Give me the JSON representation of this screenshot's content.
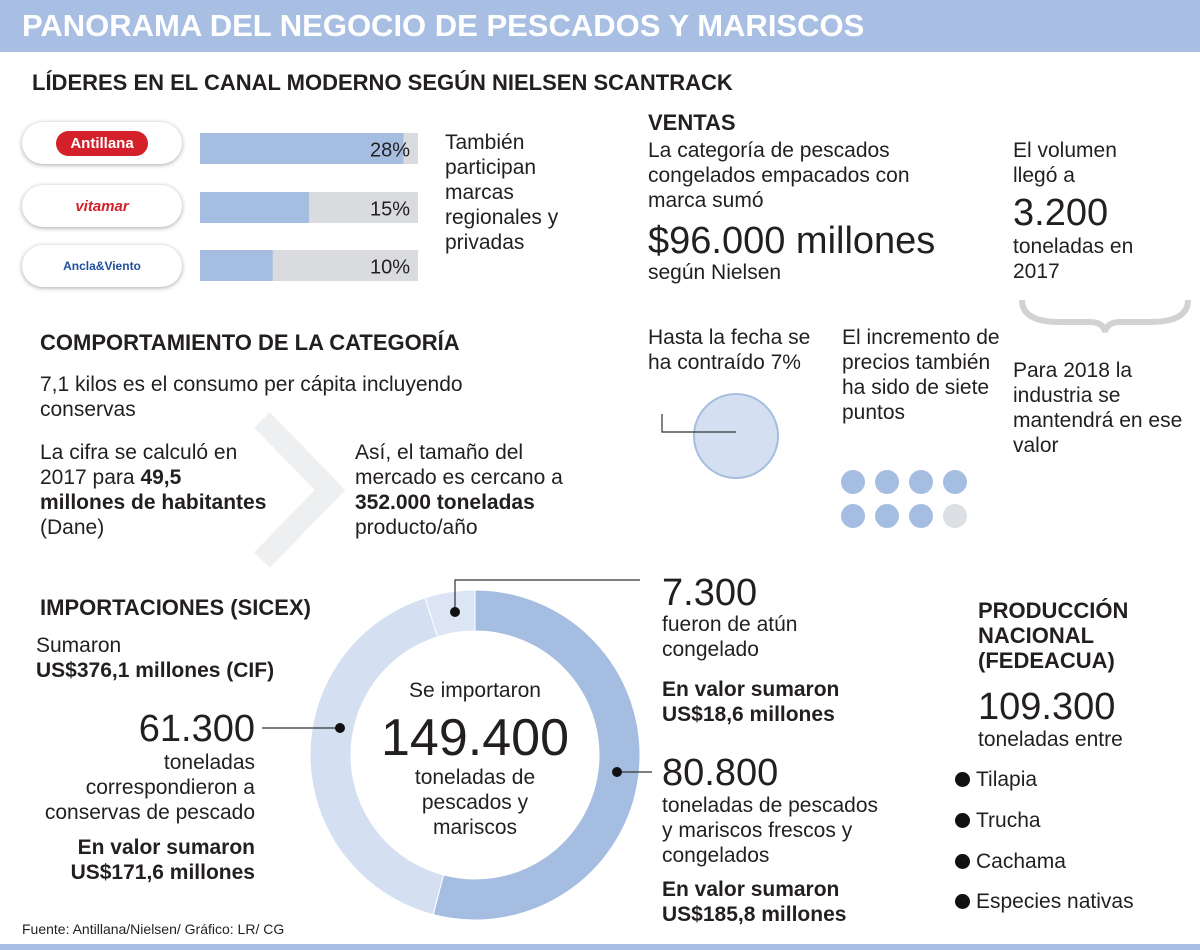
{
  "header": {
    "title": "PANORAMA DEL NEGOCIO DE PESCADOS Y MARISCOS"
  },
  "leaders": {
    "title": "LÍDERES EN EL CANAL MODERNO SEGÚN NIELSEN SCANTRACK",
    "note": "También participan marcas regionales y privadas"
  },
  "chart_data": [
    {
      "type": "bar",
      "categories": [
        "Antillana",
        "vitamar",
        "Ancla&Viento"
      ],
      "values": [
        28,
        15,
        10
      ],
      "value_labels": [
        "28%",
        "15%",
        "10%"
      ],
      "xlim": [
        0,
        30
      ],
      "color": "#a6bde2",
      "track_color": "#d9dbde"
    },
    {
      "type": "donut",
      "values": [
        80800,
        61300,
        7300
      ],
      "value_labels": [
        "80.800",
        "61.300",
        "7.300"
      ],
      "colors": [
        "#a6bde2",
        "#d4e0f1",
        "#dbe5f4"
      ]
    }
  ],
  "sales": {
    "title": "VENTAS",
    "text": "La categoría de pescados congelados empacados con marca sumó",
    "amount": "$96.000 millones",
    "source": "según Nielsen"
  },
  "volume": {
    "pre": "El volumen llegó a",
    "value": "3.200",
    "post": "toneladas en 2017",
    "forecast": "Para 2018 la industria se mantendrá en ese valor"
  },
  "contraction": {
    "text": "Hasta la fecha se ha contraído 7%"
  },
  "prices": {
    "text": "El incremento de precios también ha sido de siete puntos"
  },
  "category": {
    "title": "COMPORTAMIENTO DE LA CATEGORÍA",
    "per_capita": "7,1 kilos es el consumo per cápita incluyendo conservas",
    "calc": [
      "La cifra se calculó en 2017 para",
      "49,5 millones de habitantes",
      "(Dane)"
    ],
    "market": [
      "Así, el tamaño del mercado es cercano a",
      "352.000 toneladas",
      "producto/año"
    ]
  },
  "imports": {
    "title": "IMPORTACIONES (SICEX)",
    "sum_label": "Sumaron",
    "sum_value": "US$376,1 millones (CIF)",
    "center": {
      "pre": "Se importaron",
      "value": "149.400",
      "post": "toneladas de pescados y mariscos"
    },
    "conservas": {
      "desc": "toneladas correspondieron a conservas de pescado",
      "value_label": "En valor sumaron",
      "value": "US$171,6 millones"
    },
    "tuna": {
      "desc": "fueron de atún congelado",
      "value_label": "En valor sumaron",
      "value": "US$18,6 millones"
    },
    "fresh": {
      "desc": "toneladas de pescados y mariscos frescos y congelados",
      "value_label": "En valor sumaron",
      "value": "US$185,8 millones"
    }
  },
  "production": {
    "title": "PRODUCCIÓN NACIONAL (FEDEACUA)",
    "value": "109.300",
    "desc": "toneladas entre",
    "species": [
      "Tilapia",
      "Trucha",
      "Cachama",
      "Especies nativas"
    ]
  },
  "footer": {
    "source": "Fuente: Antillana/Nielsen/ Gráfico: LR/ CG"
  }
}
